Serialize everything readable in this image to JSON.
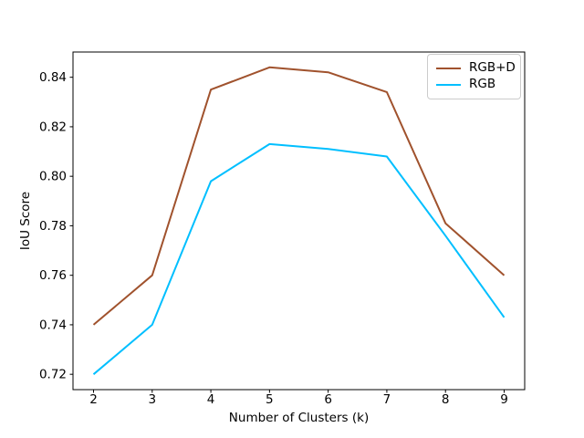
{
  "figure": {
    "background": "#ffffff",
    "axis_color": "#000000",
    "tick_label_color": "#000000"
  },
  "chart_data": {
    "type": "line",
    "title": "",
    "xlabel": "Number of Clusters (k)",
    "ylabel": "IoU Score",
    "x": [
      2,
      3,
      4,
      5,
      6,
      7,
      8,
      9
    ],
    "series": [
      {
        "name": "RGB+D",
        "color": "#A0522D",
        "values": [
          0.74,
          0.76,
          0.835,
          0.844,
          0.842,
          0.834,
          0.781,
          0.76
        ]
      },
      {
        "name": "RGB",
        "color": "#00BFFF",
        "values": [
          0.72,
          0.74,
          0.798,
          0.813,
          0.811,
          0.808,
          0.776,
          0.743
        ]
      }
    ],
    "xticks": [
      2,
      3,
      4,
      5,
      6,
      7,
      8,
      9
    ],
    "yticks": [
      0.72,
      0.74,
      0.76,
      0.78,
      0.8,
      0.82,
      0.84
    ],
    "xlim": [
      1.65,
      9.35
    ],
    "ylim": [
      0.7138,
      0.8502
    ],
    "grid": false,
    "legend": {
      "position": "upper-right",
      "entries": [
        "RGB+D",
        "RGB"
      ]
    }
  }
}
